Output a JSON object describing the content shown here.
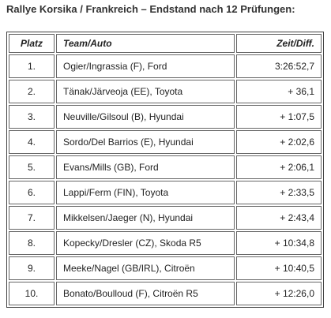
{
  "header": {
    "title": "Rallye Korsika / Frankreich – Endstand nach 12 Prüfungen:"
  },
  "table": {
    "headers": [
      "Platz",
      "Team/Auto",
      "Zeit/Diff."
    ],
    "rows": [
      [
        "1.",
        "Ogier/Ingrassia (F), Ford",
        "3:26:52,7"
      ],
      [
        "2.",
        "Tänak/Järveoja (EE), Toyota",
        "+ 36,1"
      ],
      [
        "3.",
        "Neuville/Gilsoul (B), Hyundai",
        "+ 1:07,5"
      ],
      [
        "4.",
        "Sordo/Del Barrios (E), Hyundai",
        "+ 2:02,6"
      ],
      [
        "5.",
        "Evans/Mills (GB), Ford",
        "+ 2:06,1"
      ],
      [
        "6.",
        "Lappi/Ferm (FIN), Toyota",
        "+ 2:33,5"
      ],
      [
        "7.",
        "Mikkelsen/Jaeger (N), Hyundai",
        "+ 2:43,4"
      ],
      [
        "8.",
        "Kopecky/Dresler (CZ), Skoda R5",
        "+ 10:34,8"
      ],
      [
        "9.",
        "Meeke/Nagel (GB/IRL), Citroën",
        "+ 10:40,5"
      ],
      [
        "10.",
        "Bonato/Boulloud (F), Citroën R5",
        "+ 12:26,0"
      ]
    ]
  }
}
